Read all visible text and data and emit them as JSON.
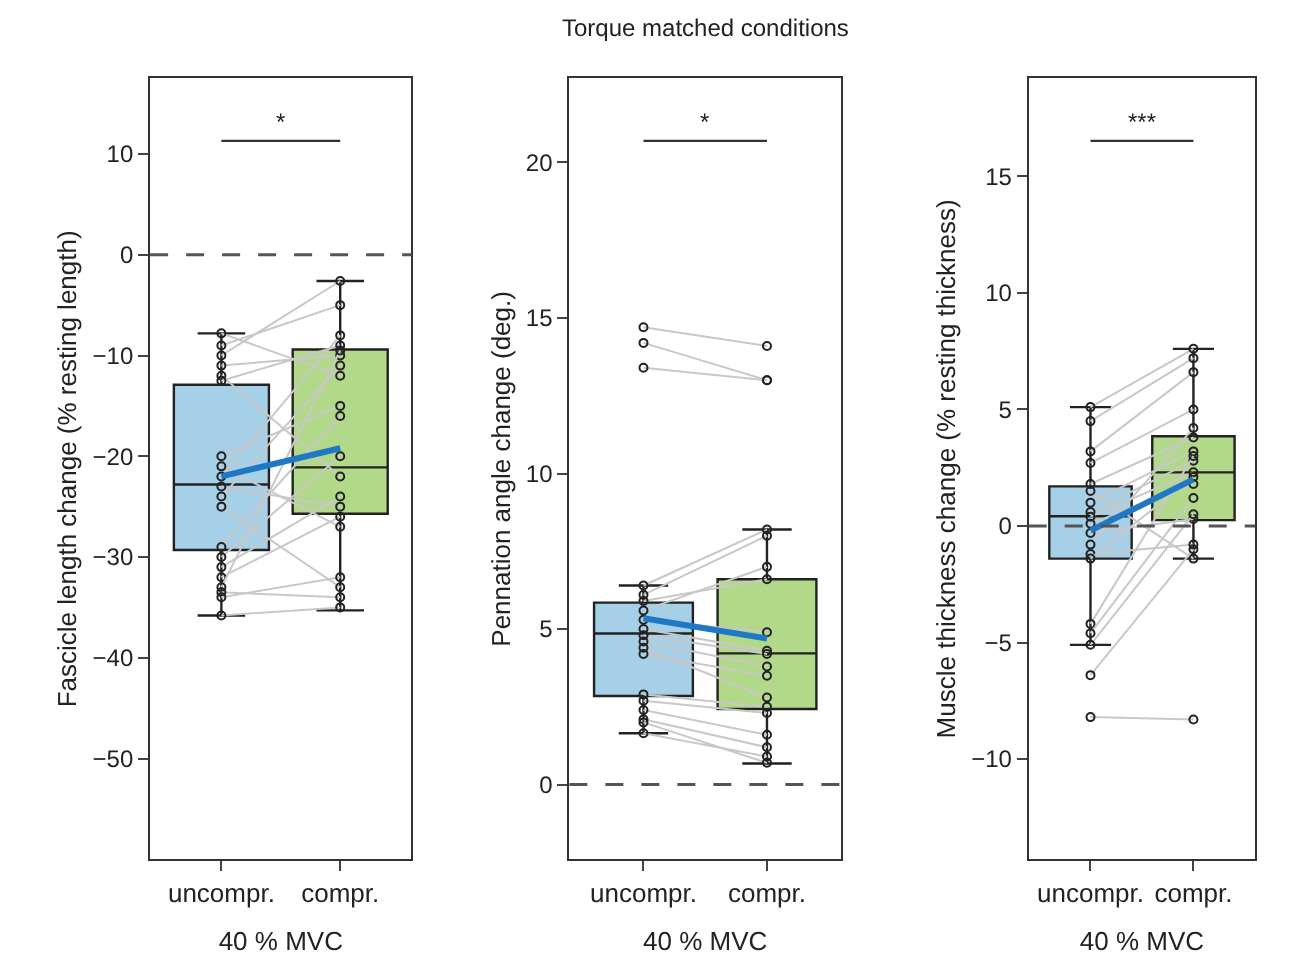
{
  "chart_data": [
    {
      "type": "box",
      "categories": [
        "uncompr.",
        "compr."
      ],
      "xlabel": "40 % MVC",
      "ylabel": "Fascicle length change (% resting length)",
      "ylim": [
        -60,
        17.5
      ],
      "yticks": [
        10,
        0,
        -10,
        -20,
        -30,
        -40,
        -50
      ],
      "marker": "circle",
      "annotations": [
        "*"
      ],
      "colors": [
        "#a6cfe8",
        "#b2d98a"
      ],
      "boxes": [
        {
          "low": -35.8,
          "q1": -29.3,
          "median": -22.8,
          "q3": -12.9,
          "high": -7.8
        },
        {
          "low": -35.3,
          "q1": -25.7,
          "median": -21.1,
          "q3": -9.4,
          "high": -2.6
        }
      ],
      "ref_lines": [
        {
          "axis": "y",
          "value": 0,
          "line_style": "dashed",
          "color": "#555555"
        }
      ],
      "series": [
        {
          "type": "line",
          "color": "#c8c8c8",
          "values": [
            -7.8,
            -12
          ]
        },
        {
          "type": "line",
          "color": "#c8c8c8",
          "values": [
            -9,
            -5
          ]
        },
        {
          "type": "line",
          "color": "#c8c8c8",
          "values": [
            -10,
            -2.6
          ]
        },
        {
          "type": "line",
          "color": "#c8c8c8",
          "values": [
            -11,
            -10
          ]
        },
        {
          "type": "line",
          "color": "#c8c8c8",
          "values": [
            -12,
            -22
          ]
        },
        {
          "type": "line",
          "color": "#c8c8c8",
          "values": [
            -12.5,
            -9
          ]
        },
        {
          "type": "line",
          "color": "#c8c8c8",
          "values": [
            -20,
            -15
          ]
        },
        {
          "type": "line",
          "color": "#c8c8c8",
          "values": [
            -21,
            -27
          ]
        },
        {
          "type": "line",
          "color": "#c8c8c8",
          "values": [
            -22,
            -8
          ]
        },
        {
          "type": "line",
          "color": "#c8c8c8",
          "values": [
            -23,
            -25
          ]
        },
        {
          "type": "line",
          "color": "#c8c8c8",
          "values": [
            -24,
            -11
          ]
        },
        {
          "type": "line",
          "color": "#c8c8c8",
          "values": [
            -25,
            -33
          ]
        },
        {
          "type": "line",
          "color": "#c8c8c8",
          "values": [
            -29,
            -16
          ]
        },
        {
          "type": "line",
          "color": "#c8c8c8",
          "values": [
            -30,
            -20
          ]
        },
        {
          "type": "line",
          "color": "#c8c8c8",
          "values": [
            -31,
            -24
          ]
        },
        {
          "type": "line",
          "color": "#c8c8c8",
          "values": [
            -32,
            -26
          ]
        },
        {
          "type": "line",
          "color": "#c8c8c8",
          "values": [
            -33,
            -9.5
          ]
        },
        {
          "type": "line",
          "color": "#c8c8c8",
          "values": [
            -33.5,
            -34
          ]
        },
        {
          "type": "line",
          "color": "#c8c8c8",
          "values": [
            -34,
            -32
          ]
        },
        {
          "type": "line",
          "color": "#c8c8c8",
          "values": [
            -35.8,
            -35
          ]
        },
        {
          "type": "line",
          "color": "#1f78c4",
          "marker": "none",
          "values": [
            -22.0,
            -19.2
          ]
        }
      ]
    },
    {
      "type": "box",
      "title": "Torque matched conditions",
      "categories": [
        "uncompr.",
        "compr."
      ],
      "xlabel": "40 % MVC",
      "ylabel": "Pennation angle change (deg.)",
      "ylim": [
        -2.4,
        22.7
      ],
      "yticks": [
        0,
        5,
        10,
        15,
        20
      ],
      "marker": "circle",
      "annotations": [
        "*"
      ],
      "colors": [
        "#a6cfe8",
        "#b2d98a"
      ],
      "boxes": [
        {
          "low": 1.65,
          "q1": 2.85,
          "median": 4.86,
          "q3": 5.85,
          "high": 6.4
        },
        {
          "low": 0.68,
          "q1": 2.43,
          "median": 4.22,
          "q3": 6.6,
          "high": 8.2
        }
      ],
      "ref_lines": [
        {
          "axis": "y",
          "value": 0,
          "line_style": "dashed",
          "color": "#555555"
        }
      ],
      "series": [
        {
          "type": "line",
          "color": "#c8c8c8",
          "values": [
            14.7,
            14.1
          ]
        },
        {
          "type": "line",
          "color": "#c8c8c8",
          "values": [
            14.2,
            13.0
          ]
        },
        {
          "type": "line",
          "color": "#c8c8c8",
          "values": [
            13.4,
            13.0
          ]
        },
        {
          "type": "line",
          "color": "#c8c8c8",
          "values": [
            6.4,
            8.2
          ]
        },
        {
          "type": "line",
          "color": "#c8c8c8",
          "values": [
            6.1,
            8.0
          ]
        },
        {
          "type": "line",
          "color": "#c8c8c8",
          "values": [
            5.9,
            6.6
          ]
        },
        {
          "type": "line",
          "color": "#c8c8c8",
          "values": [
            5.6,
            7.0
          ]
        },
        {
          "type": "line",
          "color": "#c8c8c8",
          "values": [
            5.3,
            4.9
          ]
        },
        {
          "type": "line",
          "color": "#c8c8c8",
          "values": [
            5.0,
            4.3
          ]
        },
        {
          "type": "line",
          "color": "#c8c8c8",
          "values": [
            4.8,
            4.2
          ]
        },
        {
          "type": "line",
          "color": "#c8c8c8",
          "values": [
            4.6,
            3.8
          ]
        },
        {
          "type": "line",
          "color": "#c8c8c8",
          "values": [
            4.4,
            2.8
          ]
        },
        {
          "type": "line",
          "color": "#c8c8c8",
          "values": [
            4.2,
            3.5
          ]
        },
        {
          "type": "line",
          "color": "#c8c8c8",
          "values": [
            2.9,
            2.5
          ]
        },
        {
          "type": "line",
          "color": "#c8c8c8",
          "values": [
            2.7,
            2.3
          ]
        },
        {
          "type": "line",
          "color": "#c8c8c8",
          "values": [
            2.4,
            1.6
          ]
        },
        {
          "type": "line",
          "color": "#c8c8c8",
          "values": [
            2.1,
            1.2
          ]
        },
        {
          "type": "line",
          "color": "#c8c8c8",
          "values": [
            2.0,
            0.7
          ]
        },
        {
          "type": "line",
          "color": "#c8c8c8",
          "values": [
            1.65,
            0.9
          ]
        },
        {
          "type": "line",
          "color": "#1f78c4",
          "marker": "none",
          "values": [
            5.35,
            4.7
          ]
        }
      ]
    },
    {
      "type": "box",
      "categories": [
        "uncompr.",
        "compr."
      ],
      "xlabel": "40 % MVC",
      "ylabel": "Muscle thickness change (% resting thickness)",
      "ylim": [
        -14.3,
        19.2
      ],
      "yticks": [
        -10,
        -5,
        0,
        5,
        10,
        15
      ],
      "marker": "circle",
      "annotations": [
        "***"
      ],
      "colors": [
        "#a6cfe8",
        "#b2d98a"
      ],
      "boxes": [
        {
          "low": -5.1,
          "q1": -1.4,
          "median": 0.42,
          "q3": 1.7,
          "high": 5.1
        },
        {
          "low": -1.4,
          "q1": 0.25,
          "median": 2.3,
          "q3": 3.85,
          "high": 7.6
        }
      ],
      "ref_lines": [
        {
          "axis": "y",
          "value": 0,
          "line_style": "dashed",
          "color": "#555555"
        }
      ],
      "series": [
        {
          "type": "line",
          "color": "#c8c8c8",
          "values": [
            5.1,
            7.6
          ]
        },
        {
          "type": "line",
          "color": "#c8c8c8",
          "values": [
            4.5,
            7.2
          ]
        },
        {
          "type": "line",
          "color": "#c8c8c8",
          "values": [
            3.2,
            6.6
          ]
        },
        {
          "type": "line",
          "color": "#c8c8c8",
          "values": [
            2.7,
            5.0
          ]
        },
        {
          "type": "line",
          "color": "#c8c8c8",
          "values": [
            1.8,
            3.8
          ]
        },
        {
          "type": "line",
          "color": "#c8c8c8",
          "values": [
            1.5,
            -1.4
          ]
        },
        {
          "type": "line",
          "color": "#c8c8c8",
          "values": [
            1.0,
            3.2
          ]
        },
        {
          "type": "line",
          "color": "#c8c8c8",
          "values": [
            0.6,
            2.8
          ]
        },
        {
          "type": "line",
          "color": "#c8c8c8",
          "values": [
            0.4,
            2.3
          ]
        },
        {
          "type": "line",
          "color": "#c8c8c8",
          "values": [
            0.1,
            1.8
          ]
        },
        {
          "type": "line",
          "color": "#c8c8c8",
          "values": [
            -0.3,
            0.3
          ]
        },
        {
          "type": "line",
          "color": "#c8c8c8",
          "values": [
            -0.8,
            4.2
          ]
        },
        {
          "type": "line",
          "color": "#c8c8c8",
          "values": [
            -1.2,
            -0.8
          ]
        },
        {
          "type": "line",
          "color": "#c8c8c8",
          "values": [
            -1.4,
            2.1
          ]
        },
        {
          "type": "line",
          "color": "#c8c8c8",
          "values": [
            -4.2,
            3.0
          ]
        },
        {
          "type": "line",
          "color": "#c8c8c8",
          "values": [
            -4.6,
            1.2
          ]
        },
        {
          "type": "line",
          "color": "#c8c8c8",
          "values": [
            -5.1,
            0.5
          ]
        },
        {
          "type": "line",
          "color": "#c8c8c8",
          "values": [
            -6.4,
            -1.0
          ]
        },
        {
          "type": "line",
          "color": "#c8c8c8",
          "values": [
            -8.2,
            -8.3
          ]
        },
        {
          "type": "line",
          "color": "#1f78c4",
          "marker": "none",
          "values": [
            -0.2,
            2.0
          ]
        }
      ]
    }
  ]
}
